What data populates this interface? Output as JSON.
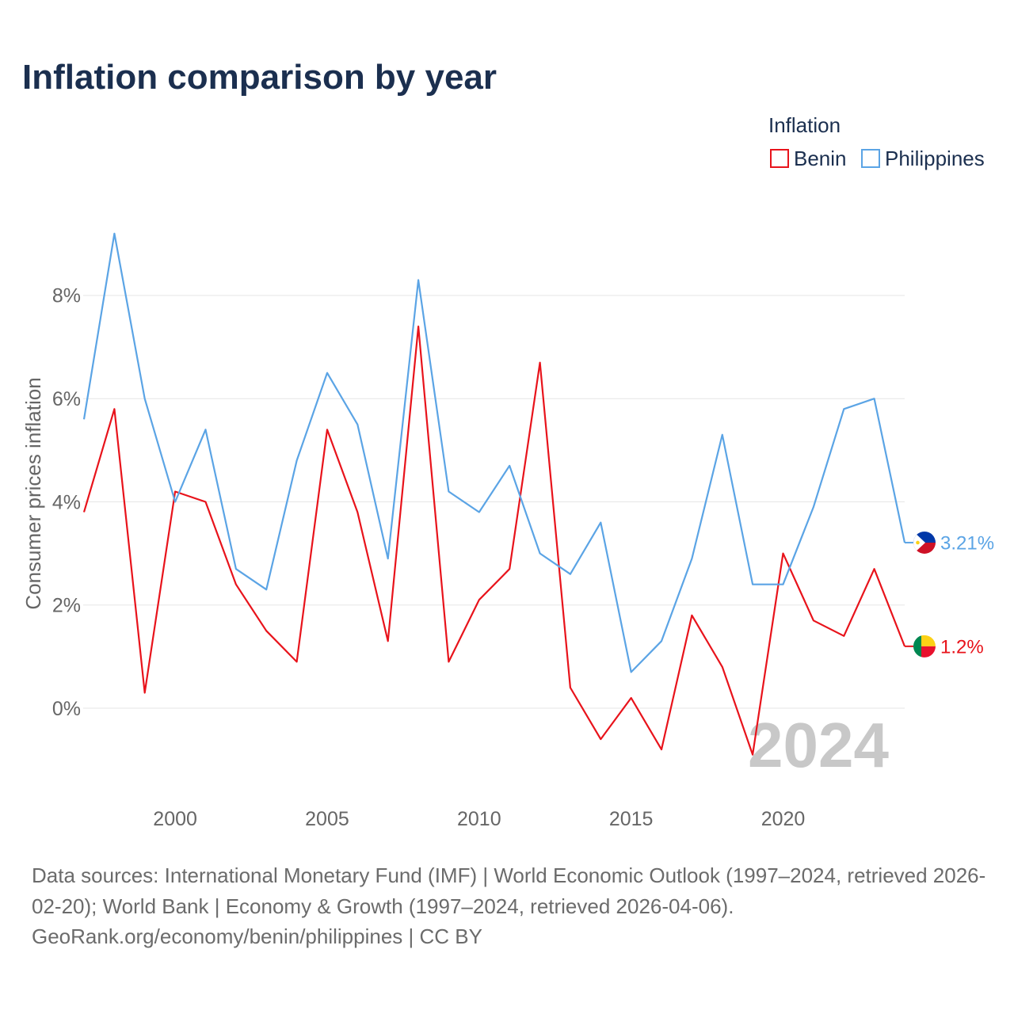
{
  "chart_data": {
    "type": "line",
    "title": "Inflation comparison by year",
    "ylabel": "Consumer prices inflation",
    "legend_title": "Inflation",
    "legend_position": "top-right",
    "watermark": "2024",
    "grid": true,
    "x": [
      1997,
      1998,
      1999,
      2000,
      2001,
      2002,
      2003,
      2004,
      2005,
      2006,
      2007,
      2008,
      2009,
      2010,
      2011,
      2012,
      2013,
      2014,
      2015,
      2016,
      2017,
      2018,
      2019,
      2020,
      2021,
      2022,
      2023,
      2024
    ],
    "xlim": [
      1997,
      2024
    ],
    "ylim": [
      -1.5,
      9.5
    ],
    "xticks": [
      2000,
      2005,
      2010,
      2015,
      2020
    ],
    "xtick_labels": [
      "2000",
      "2005",
      "2010",
      "2015",
      "2020"
    ],
    "yticks": [
      0,
      2,
      4,
      6,
      8
    ],
    "ytick_labels": [
      "0%",
      "2%",
      "4%",
      "6%",
      "8%"
    ],
    "series": [
      {
        "name": "Benin",
        "color": "#e8131b",
        "flag_icon": "benin-flag-icon",
        "end_label": "1.2%",
        "values": [
          3.8,
          5.8,
          0.3,
          4.2,
          4.0,
          2.4,
          1.5,
          0.9,
          5.4,
          3.8,
          1.3,
          7.4,
          0.9,
          2.1,
          2.7,
          6.7,
          0.4,
          -0.6,
          0.2,
          -0.8,
          1.8,
          0.8,
          -0.9,
          3.0,
          1.7,
          1.4,
          2.7,
          1.2
        ]
      },
      {
        "name": "Philippines",
        "color": "#5ba4e5",
        "flag_icon": "philippines-flag-icon",
        "end_label": "3.21%",
        "values": [
          5.6,
          9.2,
          6.0,
          4.0,
          5.4,
          2.7,
          2.3,
          4.8,
          6.5,
          5.5,
          2.9,
          8.3,
          4.2,
          3.8,
          4.7,
          3.0,
          2.6,
          3.6,
          0.7,
          1.3,
          2.9,
          5.3,
          2.4,
          2.4,
          3.9,
          5.8,
          6.0,
          3.21
        ]
      }
    ]
  },
  "footer": {
    "lines": [
      "Data sources: International Monetary Fund (IMF) | World Economic Outlook (1997–2024, retrieved 2026-",
      "02-20); World Bank | Economy & Growth (1997–2024, retrieved 2026-04-06).",
      "GeoRank.org/economy/benin/philippines | CC BY"
    ]
  }
}
